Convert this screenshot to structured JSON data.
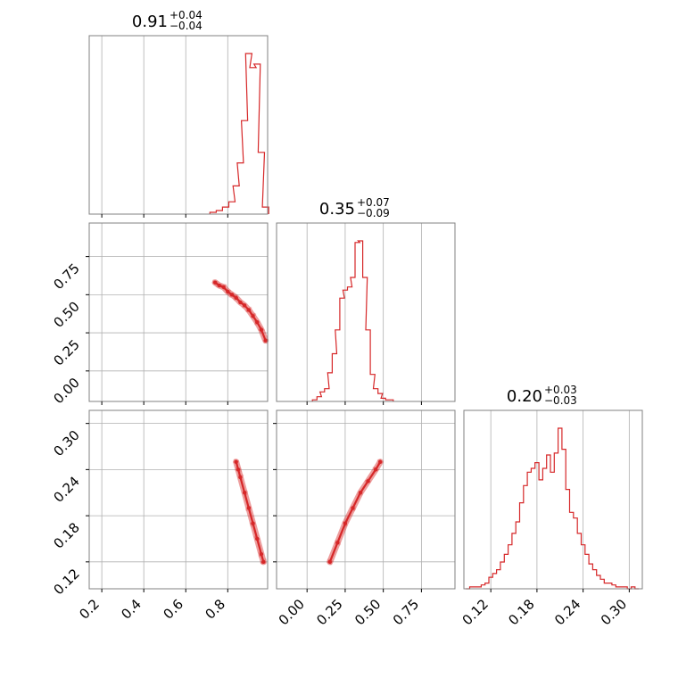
{
  "colors": {
    "accent": "#d62728",
    "grid": "#b0b0b0",
    "frame": "#808080"
  },
  "chart_data": {
    "type": "corner",
    "params": [
      {
        "title": {
          "median": "0.91",
          "plus": "+0.04",
          "minus": "−0.04"
        },
        "range": [
          0.14,
          0.99
        ],
        "ticks": [
          0.2,
          0.4,
          0.6,
          0.8
        ],
        "tick_labels": [
          "0.2",
          "0.4",
          "0.6",
          "0.8"
        ]
      },
      {
        "title": {
          "median": "0.35",
          "plus": "+0.07",
          "minus": "−0.09"
        },
        "range": [
          -0.2,
          0.97
        ],
        "ticks": [
          0.0,
          0.25,
          0.5,
          0.75
        ],
        "tick_labels": [
          "0.00",
          "0.25",
          "0.50",
          "0.75"
        ]
      },
      {
        "title": {
          "median": "0.20",
          "plus": "+0.03",
          "minus": "−0.03"
        },
        "range": [
          0.085,
          0.317
        ],
        "ticks": [
          0.12,
          0.18,
          0.24,
          0.3
        ],
        "tick_labels": [
          "0.12",
          "0.18",
          "0.24",
          "0.30"
        ]
      }
    ],
    "hist": [
      {
        "x": [
          0.73,
          0.76,
          0.79,
          0.82,
          0.84,
          0.86,
          0.88,
          0.9,
          0.92,
          0.94,
          0.96,
          0.98
        ],
        "counts": [
          1,
          2,
          4,
          7,
          16,
          29,
          53,
          91,
          83,
          85,
          35,
          4
        ]
      },
      {
        "x": [
          0.05,
          0.08,
          0.1,
          0.13,
          0.15,
          0.18,
          0.2,
          0.23,
          0.25,
          0.28,
          0.3,
          0.33,
          0.35,
          0.38,
          0.4,
          0.43,
          0.45,
          0.48,
          0.5,
          0.53,
          0.55
        ],
        "counts": [
          1,
          3,
          6,
          8,
          18,
          30,
          45,
          65,
          70,
          72,
          78,
          100,
          101,
          78,
          45,
          17,
          8,
          5,
          2,
          1,
          1
        ]
      },
      {
        "x": [
          0.09,
          0.095,
          0.1,
          0.105,
          0.11,
          0.115,
          0.12,
          0.125,
          0.13,
          0.135,
          0.14,
          0.145,
          0.15,
          0.155,
          0.16,
          0.165,
          0.17,
          0.175,
          0.18,
          0.185,
          0.19,
          0.195,
          0.2,
          0.205,
          0.21,
          0.215,
          0.22,
          0.225,
          0.23,
          0.235,
          0.24,
          0.245,
          0.25,
          0.255,
          0.26,
          0.265,
          0.27,
          0.275,
          0.28,
          0.285,
          0.29,
          0.295,
          0.3,
          0.305,
          0.31
        ],
        "counts": [
          0,
          1,
          1,
          1,
          2,
          3,
          6,
          8,
          10,
          14,
          18,
          23,
          29,
          35,
          45,
          54,
          61,
          63,
          66,
          57,
          63,
          70,
          61,
          71,
          84,
          73,
          52,
          40,
          37,
          29,
          23,
          18,
          13,
          10,
          7,
          5,
          3,
          3,
          2,
          1,
          1,
          1,
          0,
          1,
          0
        ]
      }
    ],
    "pairs": [
      {
        "x_param": 0,
        "y_param": 1,
        "points": [
          [
            0.74,
            0.58
          ],
          [
            0.76,
            0.56
          ],
          [
            0.78,
            0.55
          ],
          [
            0.8,
            0.52
          ],
          [
            0.82,
            0.5
          ],
          [
            0.84,
            0.48
          ],
          [
            0.86,
            0.45
          ],
          [
            0.88,
            0.43
          ],
          [
            0.9,
            0.4
          ],
          [
            0.92,
            0.36
          ],
          [
            0.94,
            0.32
          ],
          [
            0.96,
            0.27
          ],
          [
            0.98,
            0.2
          ]
        ]
      },
      {
        "x_param": 0,
        "y_param": 2,
        "points": [
          [
            0.84,
            0.25
          ],
          [
            0.85,
            0.24
          ],
          [
            0.86,
            0.23
          ],
          [
            0.88,
            0.21
          ],
          [
            0.9,
            0.19
          ],
          [
            0.92,
            0.17
          ],
          [
            0.94,
            0.15
          ],
          [
            0.96,
            0.13
          ],
          [
            0.97,
            0.12
          ]
        ]
      },
      {
        "x_param": 1,
        "y_param": 2,
        "points": [
          [
            0.15,
            0.12
          ],
          [
            0.2,
            0.145
          ],
          [
            0.25,
            0.17
          ],
          [
            0.3,
            0.19
          ],
          [
            0.35,
            0.21
          ],
          [
            0.4,
            0.225
          ],
          [
            0.45,
            0.24
          ],
          [
            0.48,
            0.25
          ]
        ]
      }
    ]
  }
}
